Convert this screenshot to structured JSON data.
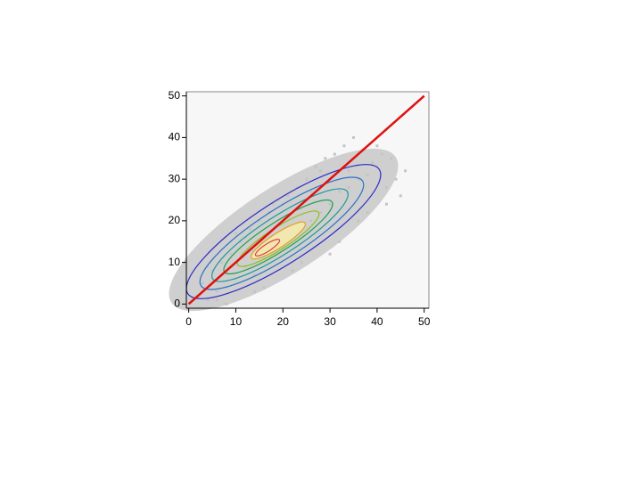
{
  "chart_data": {
    "type": "scatter",
    "x": [
      2,
      3,
      4,
      5,
      6,
      7,
      8,
      9,
      10,
      11,
      12,
      13,
      14,
      15,
      16,
      17,
      18,
      19,
      20,
      21,
      22,
      23,
      24,
      25,
      26,
      27,
      28,
      29,
      30,
      31,
      32,
      33,
      34,
      35,
      36,
      37,
      38,
      39,
      40,
      41,
      42,
      43,
      44,
      45,
      46,
      4,
      8,
      12,
      16,
      20,
      24,
      28,
      32,
      36,
      40,
      6,
      10,
      14,
      18,
      22,
      26,
      30,
      34,
      38,
      42
    ],
    "series": [
      {
        "color": "#c4c4c4",
        "values": [
          2,
          5,
          1,
          8,
          3,
          10,
          4,
          12,
          6,
          15,
          9,
          18,
          7,
          20,
          11,
          22,
          13,
          25,
          14,
          26,
          17,
          28,
          19,
          30,
          20,
          33,
          22,
          35,
          24,
          36,
          27,
          38,
          28,
          40,
          30,
          37,
          31,
          34,
          33,
          36,
          28,
          35,
          30,
          26,
          32,
          9,
          0,
          16,
          4,
          24,
          10,
          32,
          15,
          20,
          38,
          1,
          17,
          3,
          24,
          8,
          27,
          12,
          32,
          22,
          24
        ]
      }
    ],
    "reference_line": {
      "x": [
        0,
        50
      ],
      "y": [
        0,
        50
      ],
      "color": "#e01010"
    },
    "xlim": [
      -0.5,
      51
    ],
    "ylim": [
      -1,
      51
    ],
    "xticks": [
      0,
      10,
      20,
      30,
      40,
      50
    ],
    "yticks": [
      0,
      10,
      20,
      30,
      40,
      50
    ]
  }
}
